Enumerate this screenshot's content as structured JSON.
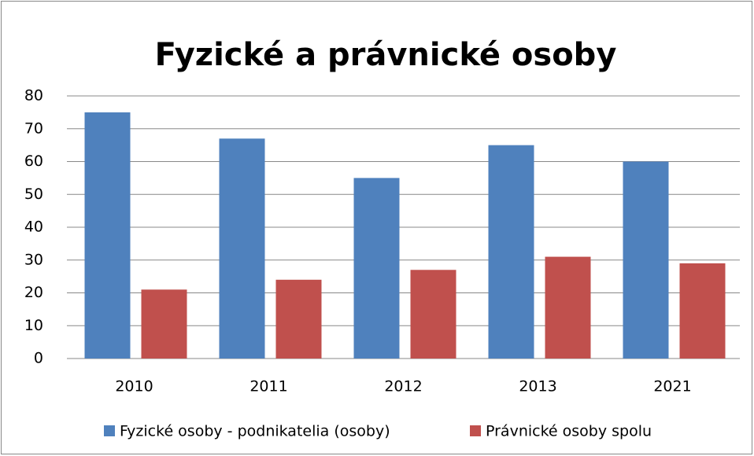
{
  "chart_data": {
    "type": "bar",
    "title": "Fyzické a právnické osoby",
    "categories": [
      "2010",
      "2011",
      "2012",
      "2013",
      "2021"
    ],
    "series": [
      {
        "name": "Fyzické osoby - podnikatelia (osoby)",
        "color": "#4f81bd",
        "values": [
          75,
          67,
          55,
          65,
          60
        ]
      },
      {
        "name": "Právnické osoby spolu",
        "color": "#c0504d",
        "values": [
          21,
          24,
          27,
          31,
          29
        ]
      }
    ],
    "ylim": [
      0,
      80
    ],
    "yticks": [
      0,
      10,
      20,
      30,
      40,
      50,
      60,
      70,
      80
    ],
    "grid": true,
    "legend": "bottom"
  }
}
